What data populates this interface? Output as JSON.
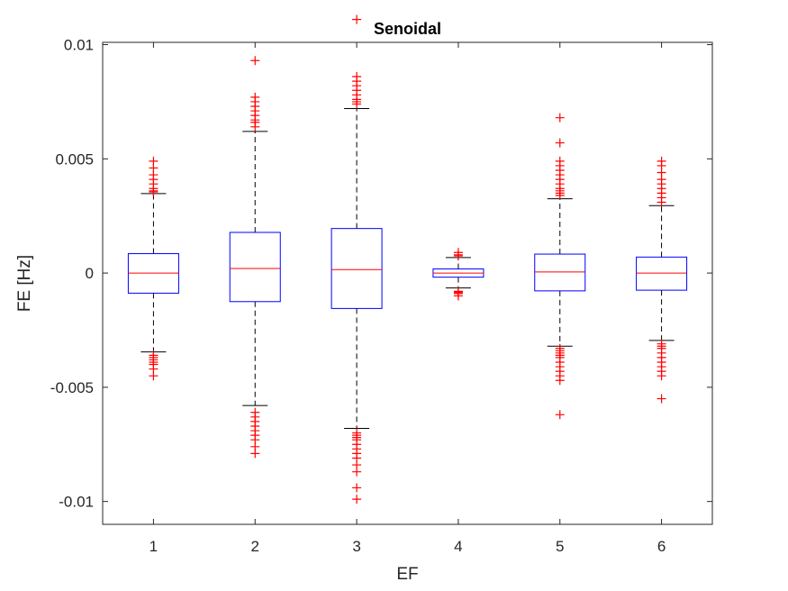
{
  "chart_data": {
    "type": "boxplot",
    "title": "Senoidal",
    "xlabel": "EF",
    "ylabel": "FE [Hz]",
    "ylim": [
      -0.011,
      0.0101
    ],
    "yticks": [
      0.01,
      0.005,
      0,
      -0.005,
      -0.01
    ],
    "ytick_labels": [
      "0.01",
      "0.005",
      "0",
      "-0.005",
      "-0.01"
    ],
    "categories": [
      "1",
      "2",
      "3",
      "4",
      "5",
      "6"
    ],
    "colors": {
      "box": "#0000ff",
      "median": "#ff0000",
      "whisker": "#000000",
      "outlier": "#ff0000",
      "axis": "#262626"
    },
    "boxes": [
      {
        "label": "1",
        "whisker_low": -0.00345,
        "q1": -0.00088,
        "median": 0.0,
        "q3": 0.00085,
        "whisker_high": 0.00348,
        "outliers": [
          0.0049,
          0.0046,
          0.0043,
          0.0041,
          0.0039,
          0.0037,
          0.0036,
          0.00355,
          -0.0036,
          -0.0037,
          -0.0038,
          -0.0039,
          -0.004,
          -0.0042,
          -0.0045
        ]
      },
      {
        "label": "2",
        "whisker_low": -0.0058,
        "q1": -0.00125,
        "median": 0.0002,
        "q3": 0.00178,
        "whisker_high": 0.0062,
        "outliers": [
          0.0093,
          0.0077,
          0.0075,
          0.0073,
          0.0071,
          0.0069,
          0.0067,
          0.0066,
          0.0064,
          -0.0061,
          -0.0063,
          -0.0065,
          -0.0067,
          -0.0069,
          -0.0071,
          -0.0073,
          -0.0076,
          -0.0079
        ]
      },
      {
        "label": "3",
        "whisker_low": -0.0068,
        "q1": -0.00155,
        "median": 0.00015,
        "q3": 0.00195,
        "whisker_high": 0.0072,
        "outliers": [
          0.0111,
          0.0086,
          0.0084,
          0.0082,
          0.008,
          0.0078,
          0.0076,
          0.0075,
          0.0074,
          -0.007,
          -0.0071,
          -0.0072,
          -0.0073,
          -0.0075,
          -0.0077,
          -0.0079,
          -0.0081,
          -0.0084,
          -0.0087,
          -0.0094,
          -0.0099
        ]
      },
      {
        "label": "4",
        "whisker_low": -0.00065,
        "q1": -0.00018,
        "median": 0.0,
        "q3": 0.00018,
        "whisker_high": 0.00068,
        "outliers": [
          0.0009,
          0.0008,
          0.00075,
          -0.0008,
          -0.00085,
          -0.0009,
          -0.001
        ]
      },
      {
        "label": "5",
        "whisker_low": -0.0032,
        "q1": -0.00078,
        "median": 5e-05,
        "q3": 0.00083,
        "whisker_high": 0.00325,
        "outliers": [
          0.0068,
          0.0057,
          0.0049,
          0.0047,
          0.0045,
          0.0043,
          0.0041,
          0.0039,
          0.0037,
          0.0036,
          0.0035,
          0.0034,
          -0.0033,
          -0.0034,
          -0.0035,
          -0.0036,
          -0.0037,
          -0.0039,
          -0.0041,
          -0.0043,
          -0.0045,
          -0.0047,
          -0.0062
        ]
      },
      {
        "label": "6",
        "whisker_low": -0.00295,
        "q1": -0.00075,
        "median": 0.0,
        "q3": 0.0007,
        "whisker_high": 0.00295,
        "outliers": [
          0.0049,
          0.0047,
          0.0044,
          0.0041,
          0.0039,
          0.0037,
          0.0035,
          0.0033,
          0.0031,
          -0.0031,
          -0.0032,
          -0.0033,
          -0.0035,
          -0.0037,
          -0.0039,
          -0.0041,
          -0.0043,
          -0.0045,
          -0.0055
        ]
      }
    ]
  }
}
